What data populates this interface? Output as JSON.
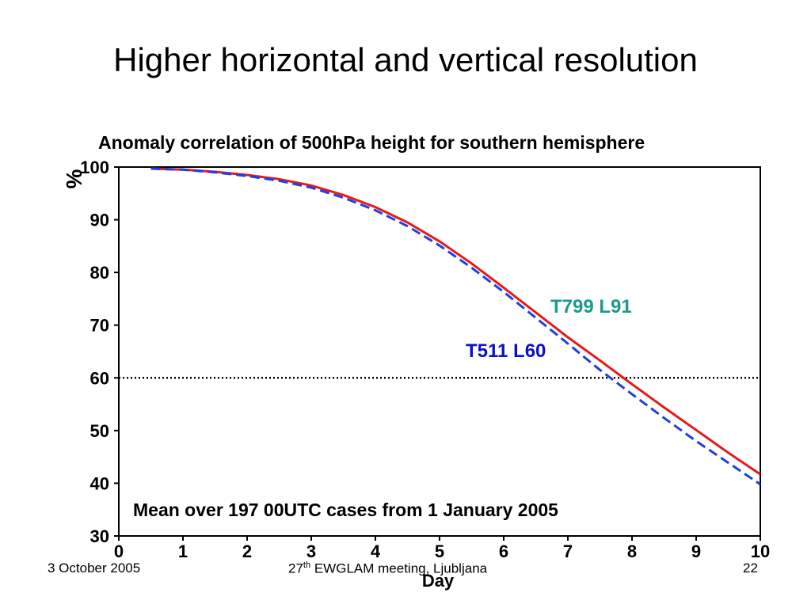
{
  "slide": {
    "title": "Higher horizontal and vertical resolution"
  },
  "footer": {
    "date": "3 October 2005",
    "meeting_prefix": "27",
    "meeting_sup": "th",
    "meeting_rest": " EWGLAM meeting, Ljubljana",
    "page": "22"
  },
  "chart_data": {
    "type": "line",
    "title": "Anomaly correlation of 500hPa height for southern hemisphere",
    "xlabel": "Day",
    "ylabel": "%",
    "xlim": [
      0,
      10
    ],
    "ylim": [
      30,
      100
    ],
    "xticks": [
      0,
      1,
      2,
      3,
      4,
      5,
      6,
      7,
      8,
      9,
      10
    ],
    "yticks": [
      30,
      40,
      50,
      60,
      70,
      80,
      90,
      100
    ],
    "reference_line": {
      "y": 60,
      "style": "dotted",
      "color": "#000000"
    },
    "annotation": "Mean over 197 00UTC cases from 1 January 2005",
    "grid": false,
    "series": [
      {
        "name": "T799 L91",
        "color": "#e41a1c",
        "style": "solid",
        "x": [
          0.5,
          1,
          1.5,
          2,
          2.5,
          3,
          3.5,
          4,
          4.5,
          5,
          5.5,
          6,
          6.5,
          7,
          7.5,
          8,
          8.5,
          9,
          9.5,
          10
        ],
        "y": [
          99.7,
          99.5,
          99.1,
          98.5,
          97.7,
          96.5,
          94.7,
          92.4,
          89.5,
          85.9,
          81.7,
          77.1,
          72.4,
          67.7,
          63.3,
          58.8,
          54.4,
          50.1,
          45.8,
          41.7
        ]
      },
      {
        "name": "T511 L60",
        "color": "#1f3fe0",
        "style": "dashed",
        "x": [
          0.5,
          1,
          1.5,
          2,
          2.5,
          3,
          3.5,
          4,
          4.5,
          5,
          5.5,
          6,
          6.5,
          7,
          7.5,
          8,
          8.5,
          9,
          9.5,
          10
        ],
        "y": [
          99.7,
          99.5,
          99.0,
          98.3,
          97.4,
          96.1,
          94.2,
          91.8,
          88.8,
          85.1,
          80.9,
          76.3,
          71.4,
          66.5,
          61.5,
          56.9,
          52.4,
          48.0,
          43.9,
          39.8
        ]
      }
    ],
    "series_label_colors": {
      "T799 L91": "#1a9a8c",
      "T511 L60": "#0a10c8"
    }
  }
}
